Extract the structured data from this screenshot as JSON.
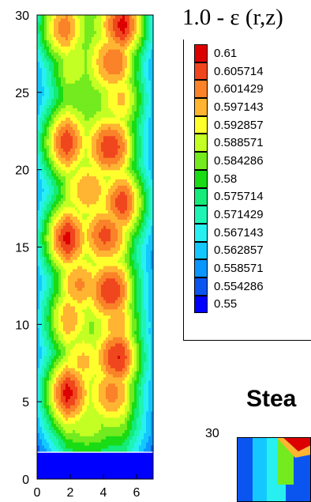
{
  "chart_data": {
    "type": "heatmap",
    "title": "1.0 - ε (r,z)",
    "xlabel": "",
    "ylabel": "",
    "xlim": [
      0,
      7
    ],
    "ylim": [
      0,
      30
    ],
    "xticks": [
      0,
      2,
      4,
      6
    ],
    "yticks": [
      0,
      5,
      10,
      15,
      20,
      25,
      30
    ],
    "legend": {
      "placement": "right",
      "levels": [
        {
          "label": "0.61",
          "color": "#dc0000"
        },
        {
          "label": "0.605714",
          "color": "#f0461e"
        },
        {
          "label": "0.601429",
          "color": "#fa8228"
        },
        {
          "label": "0.597143",
          "color": "#ffb432"
        },
        {
          "label": "0.592857",
          "color": "#ffff2d"
        },
        {
          "label": "0.588571",
          "color": "#c3ff23"
        },
        {
          "label": "0.584286",
          "color": "#73eb1e"
        },
        {
          "label": "0.58",
          "color": "#19dc14"
        },
        {
          "label": "0.575714",
          "color": "#14eb78"
        },
        {
          "label": "0.571429",
          "color": "#1ef5b4"
        },
        {
          "label": "0.567143",
          "color": "#28f0f0"
        },
        {
          "label": "0.562857",
          "color": "#14c8ff"
        },
        {
          "label": "0.558571",
          "color": "#0a96ff"
        },
        {
          "label": "0.554286",
          "color": "#0a55f0"
        },
        {
          "label": "0.55",
          "color": "#0000ff"
        }
      ]
    },
    "hotspots": [
      {
        "x": 1.2,
        "y": 29.2,
        "value": 0.6055
      },
      {
        "x": 5.3,
        "y": 29.4,
        "value": 0.61
      },
      {
        "x": 1.9,
        "y": 27.0,
        "value": 0.5905
      },
      {
        "x": 4.6,
        "y": 27.0,
        "value": 0.603
      },
      {
        "x": 2.1,
        "y": 25.2,
        "value": 0.586
      },
      {
        "x": 5.2,
        "y": 24.6,
        "value": 0.596
      },
      {
        "x": 1.5,
        "y": 21.8,
        "value": 0.608
      },
      {
        "x": 4.4,
        "y": 21.5,
        "value": 0.607
      },
      {
        "x": 3.1,
        "y": 18.7,
        "value": 0.599
      },
      {
        "x": 5.3,
        "y": 17.9,
        "value": 0.607
      },
      {
        "x": 1.6,
        "y": 15.6,
        "value": 0.61
      },
      {
        "x": 4.1,
        "y": 15.8,
        "value": 0.605
      },
      {
        "x": 2.6,
        "y": 12.6,
        "value": 0.6
      },
      {
        "x": 4.4,
        "y": 12.2,
        "value": 0.6075
      },
      {
        "x": 1.7,
        "y": 10.4,
        "value": 0.599
      },
      {
        "x": 4.9,
        "y": 10.0,
        "value": 0.598
      },
      {
        "x": 2.8,
        "y": 7.6,
        "value": 0.596
      },
      {
        "x": 4.9,
        "y": 7.9,
        "value": 0.608
      },
      {
        "x": 1.7,
        "y": 5.6,
        "value": 0.61
      },
      {
        "x": 4.5,
        "y": 5.6,
        "value": 0.601
      },
      {
        "x": 3.0,
        "y": 3.9,
        "value": 0.59
      }
    ],
    "inlet_band": {
      "y0": 0,
      "y1": 1.7,
      "value": 0.55
    }
  },
  "side_panel": {
    "title": "Stea",
    "tick": "30"
  }
}
